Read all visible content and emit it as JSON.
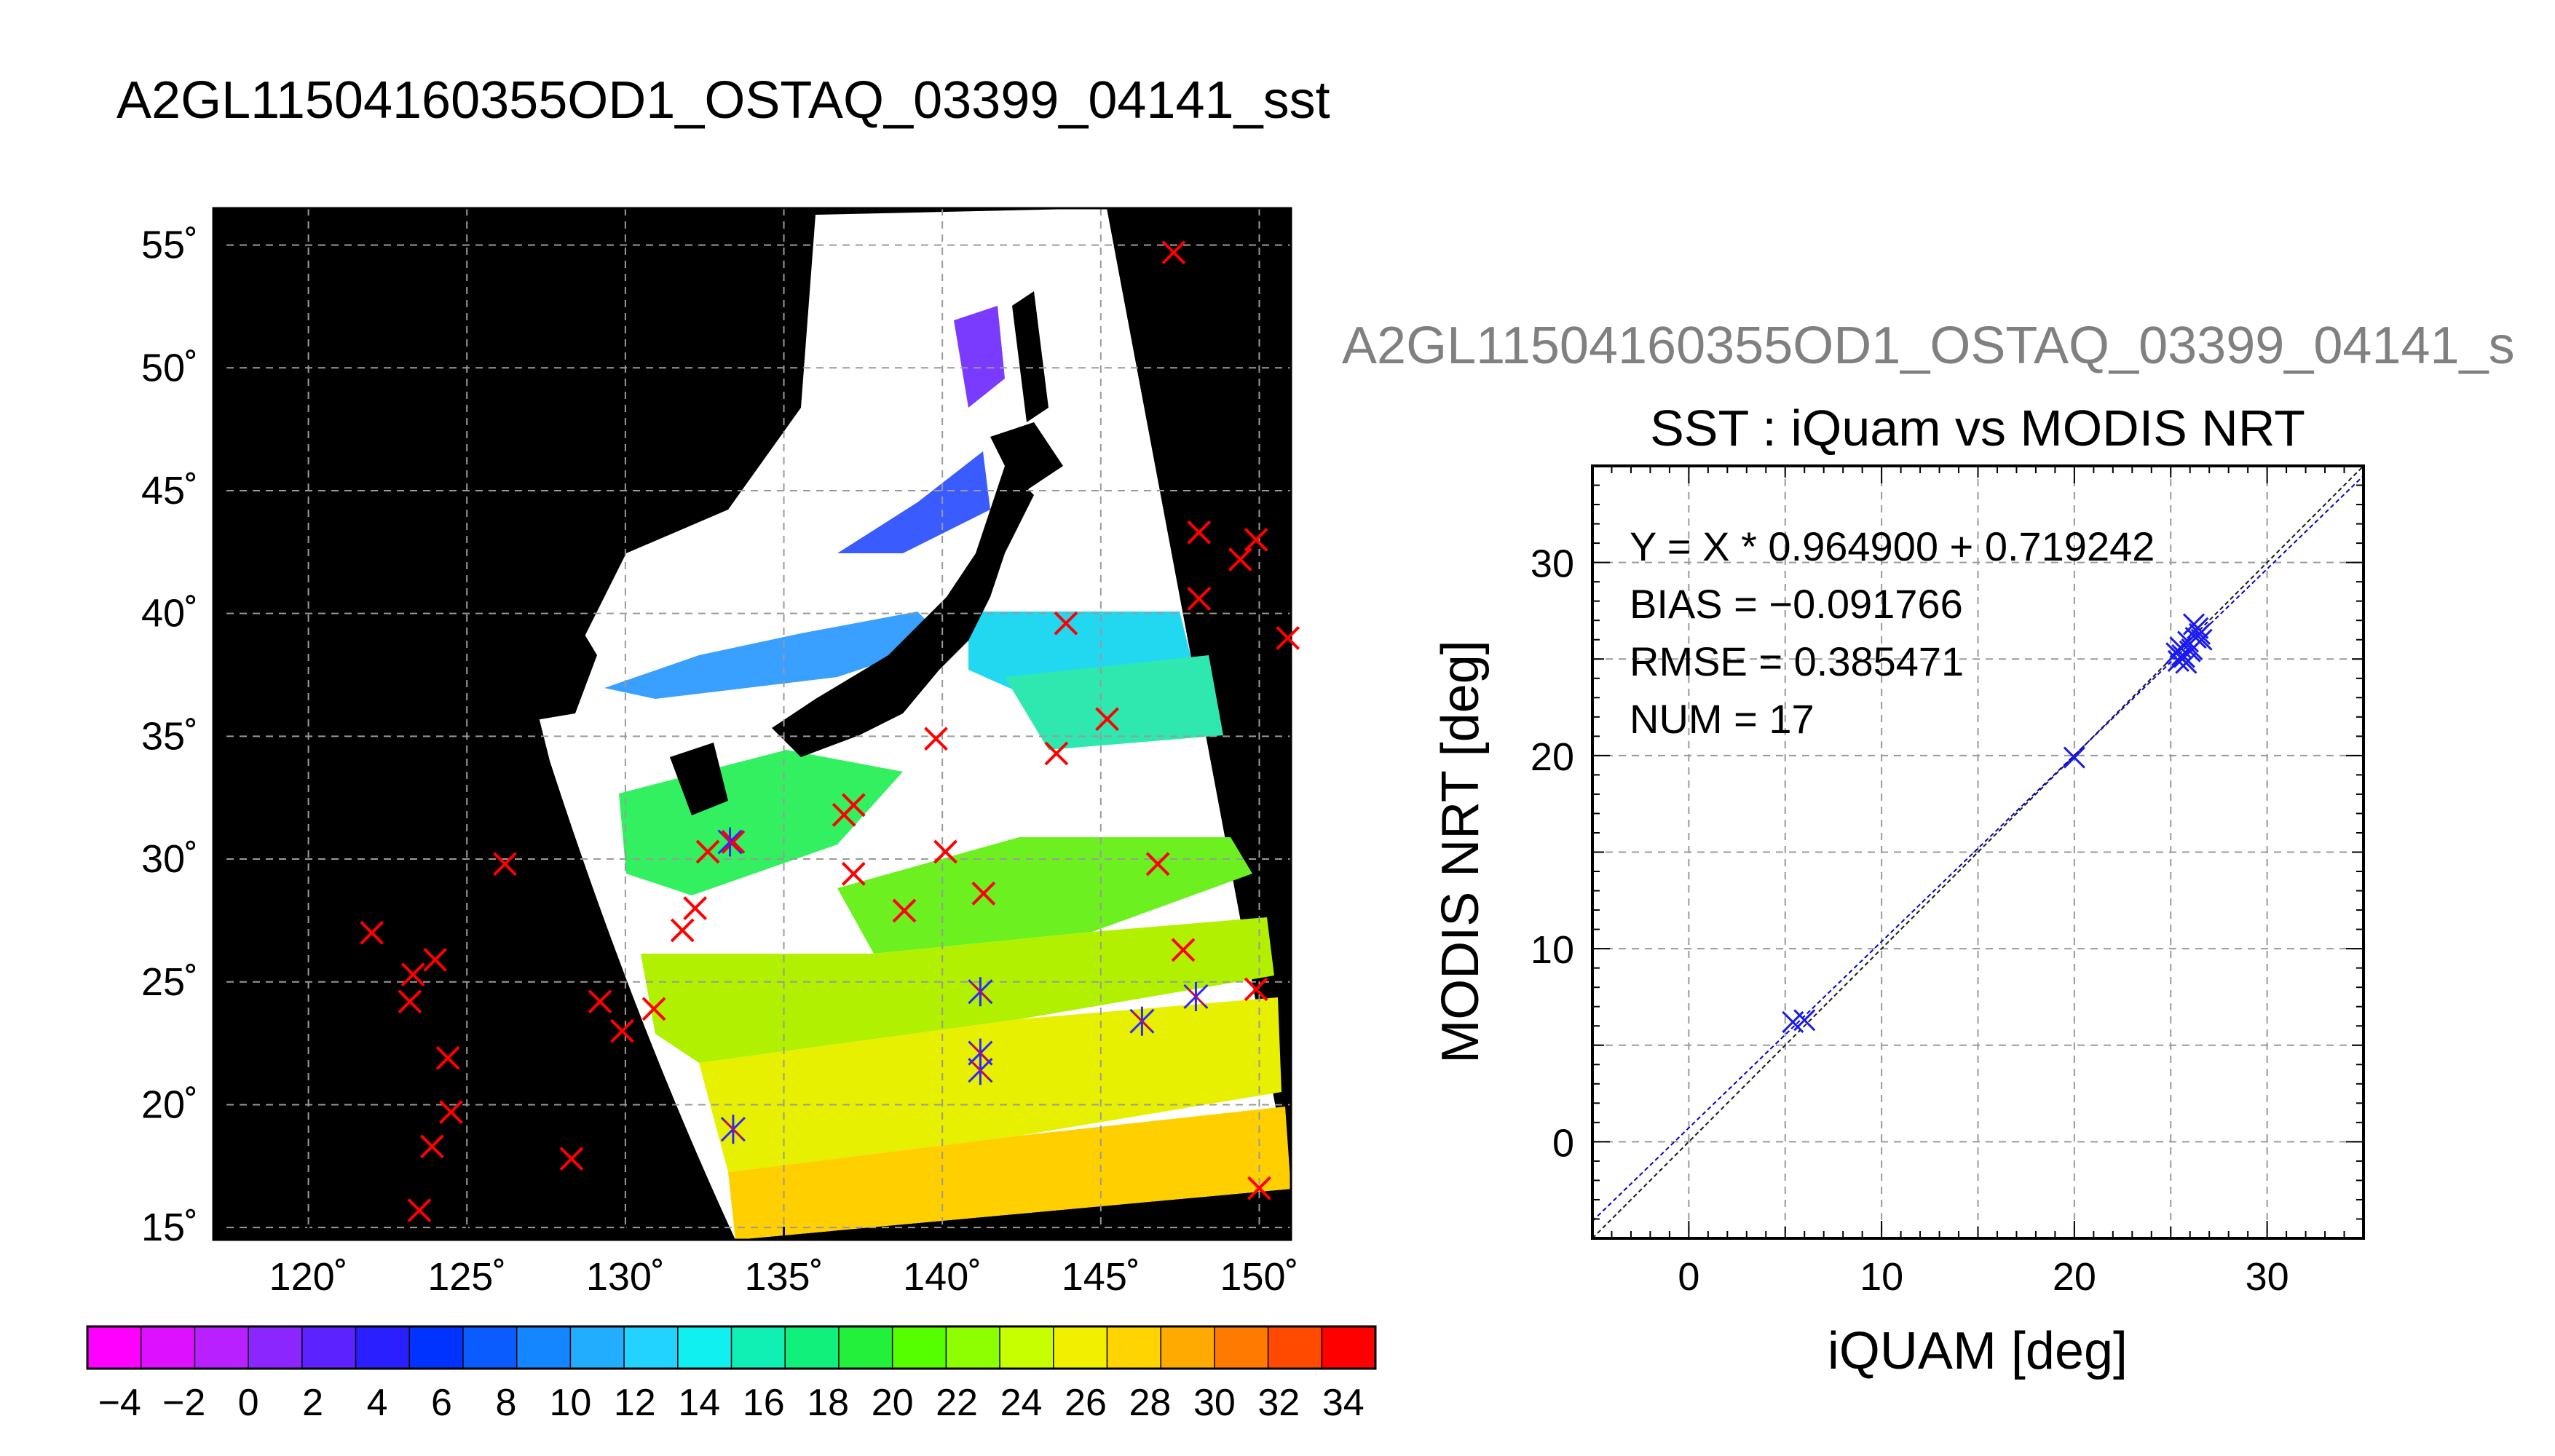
{
  "figure_title": "A2GL11504160355OD1_OSTAQ_03399_04141_sst",
  "scatter_header": "A2GL11504160355OD1_OSTAQ_03399_04141_s",
  "chart_data": [
    {
      "type": "map",
      "title": "A2GL11504160355OD1_OSTAQ_03399_04141_sst",
      "lon_ticks": [
        "120˚",
        "125˚",
        "130˚",
        "135˚",
        "140˚",
        "145˚",
        "150˚"
      ],
      "lat_ticks": [
        "15˚",
        "20˚",
        "25˚",
        "30˚",
        "35˚",
        "40˚",
        "45˚",
        "50˚",
        "55˚"
      ],
      "lon_range": [
        117,
        151
      ],
      "lat_range": [
        14.5,
        56.5
      ],
      "grid": true,
      "colorbar": {
        "range": [
          -5,
          35
        ],
        "tick_labels": [
          "−4",
          "−2",
          "0",
          "2",
          "4",
          "6",
          "8",
          "10",
          "12",
          "14",
          "16",
          "18",
          "20",
          "22",
          "24",
          "26",
          "28",
          "30",
          "32",
          "34"
        ],
        "colors": [
          "#ff00ff",
          "#dd11ff",
          "#b820ff",
          "#8c26ff",
          "#5c22ff",
          "#2a1fff",
          "#0033ff",
          "#0a5cff",
          "#1486ff",
          "#22adff",
          "#22d2ff",
          "#11f0f0",
          "#11f0b4",
          "#11f07a",
          "#22f03a",
          "#55ff00",
          "#8eff00",
          "#c8ff00",
          "#f2f000",
          "#ffd400",
          "#ffaa00",
          "#ff7a00",
          "#ff4a00",
          "#ff0000"
        ]
      },
      "red_points": [
        [
          122,
          27.0
        ],
        [
          123.3,
          25.3
        ],
        [
          123.2,
          24.2
        ],
        [
          124,
          25.9
        ],
        [
          124.4,
          21.9
        ],
        [
          124.5,
          19.7
        ],
        [
          123.9,
          18.3
        ],
        [
          123.5,
          15.7
        ],
        [
          126.2,
          29.8
        ],
        [
          128.3,
          17.8
        ],
        [
          129.2,
          24.2
        ],
        [
          129.9,
          23.0
        ],
        [
          130.9,
          23.9
        ],
        [
          131.8,
          27.1
        ],
        [
          132.2,
          28.0
        ],
        [
          132.6,
          30.3
        ],
        [
          133.4,
          30.7
        ],
        [
          136.9,
          31.8
        ],
        [
          137.2,
          32.2
        ],
        [
          137.2,
          29.4
        ],
        [
          138.8,
          27.9
        ],
        [
          140.1,
          30.3
        ],
        [
          141.3,
          28.6
        ],
        [
          139.8,
          34.9
        ],
        [
          143.6,
          34.3
        ],
        [
          145.2,
          35.7
        ],
        [
          143.9,
          39.6
        ],
        [
          146.8,
          29.8
        ],
        [
          147.6,
          26.3
        ],
        [
          148.1,
          43.3
        ],
        [
          149.9,
          43.0
        ],
        [
          149.4,
          42.2
        ],
        [
          148.1,
          40.6
        ],
        [
          150.9,
          39.0
        ],
        [
          147.3,
          54.7
        ],
        [
          149.9,
          24.7
        ],
        [
          150.0,
          16.6
        ]
      ],
      "blue_points": [
        [
          133.4,
          19.0
        ],
        [
          133.3,
          30.7
        ],
        [
          141.2,
          24.6
        ],
        [
          141.2,
          22.1
        ],
        [
          141.2,
          21.4
        ],
        [
          146.3,
          23.4
        ],
        [
          148.0,
          24.4
        ]
      ]
    },
    {
      "type": "scatter",
      "title": "SST : iQuam vs MODIS NRT",
      "xlabel": "iQUAM [deg]",
      "ylabel": "MODIS NRT [deg]",
      "xlim": [
        -5,
        35
      ],
      "ylim": [
        -5,
        35
      ],
      "ticks": [
        0,
        10,
        20,
        30
      ],
      "minor_step": 5,
      "grid": true,
      "fit": {
        "slope": 0.9649,
        "intercept": 0.719242
      },
      "stats": [
        "Y = X * 0.964900 + 0.719242",
        "BIAS = −0.091766",
        "RMSE = 0.385471",
        "NUM = 17"
      ],
      "points": [
        [
          5.4,
          6.2
        ],
        [
          6.0,
          6.3
        ],
        [
          20.0,
          19.9
        ],
        [
          25.4,
          24.9
        ],
        [
          25.6,
          25.2
        ],
        [
          25.5,
          25.6
        ],
        [
          25.7,
          25.1
        ],
        [
          25.8,
          24.8
        ],
        [
          26.0,
          25.4
        ],
        [
          26.3,
          26.1
        ],
        [
          26.4,
          26.6
        ],
        [
          26.5,
          26.3
        ],
        [
          26.2,
          26.8
        ],
        [
          25.9,
          25.9
        ],
        [
          26.1,
          25.5
        ],
        [
          25.3,
          25.3
        ],
        [
          26.6,
          26.0
        ]
      ]
    }
  ]
}
